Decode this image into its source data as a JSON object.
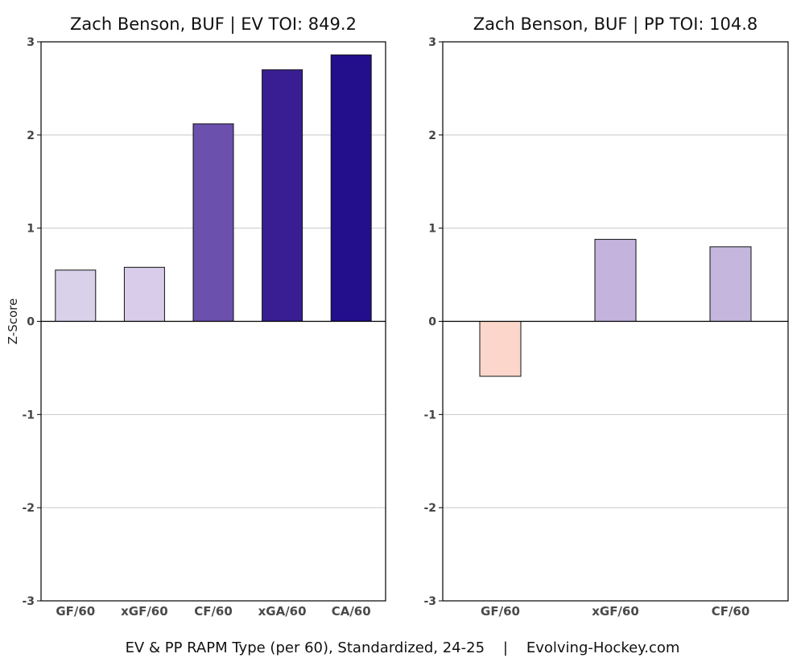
{
  "caption": "EV & PP RAPM Type (per 60), Standardized, 24-25    |    Evolving-Hockey.com",
  "colors": {
    "grid": "#c8c8c8",
    "axis": "#000000"
  },
  "chart_data": [
    {
      "type": "bar",
      "title": "Zach Benson, BUF  |  EV TOI: 849.2",
      "ylabel": "Z-Score",
      "ylim": [
        -3,
        3
      ],
      "yticks": [
        -3,
        -2,
        -1,
        0,
        1,
        2,
        3
      ],
      "grid": true,
      "categories": [
        "GF/60",
        "xGF/60",
        "CF/60",
        "xGA/60",
        "CA/60"
      ],
      "values": [
        0.55,
        0.58,
        2.12,
        2.7,
        2.86
      ],
      "colors": [
        "#d9d0ea",
        "#d9ccea",
        "#6c50ad",
        "#381e92",
        "#230f8c"
      ]
    },
    {
      "type": "bar",
      "title": "Zach Benson, BUF  |  PP TOI: 104.8",
      "ylabel": "",
      "ylim": [
        -3,
        3
      ],
      "yticks": [
        -3,
        -2,
        -1,
        0,
        1,
        2,
        3
      ],
      "grid": true,
      "categories": [
        "GF/60",
        "xGF/60",
        "CF/60"
      ],
      "values": [
        -0.59,
        0.88,
        0.8
      ],
      "colors": [
        "#fdd6cb",
        "#c3b3dd",
        "#c5b6de"
      ]
    }
  ]
}
